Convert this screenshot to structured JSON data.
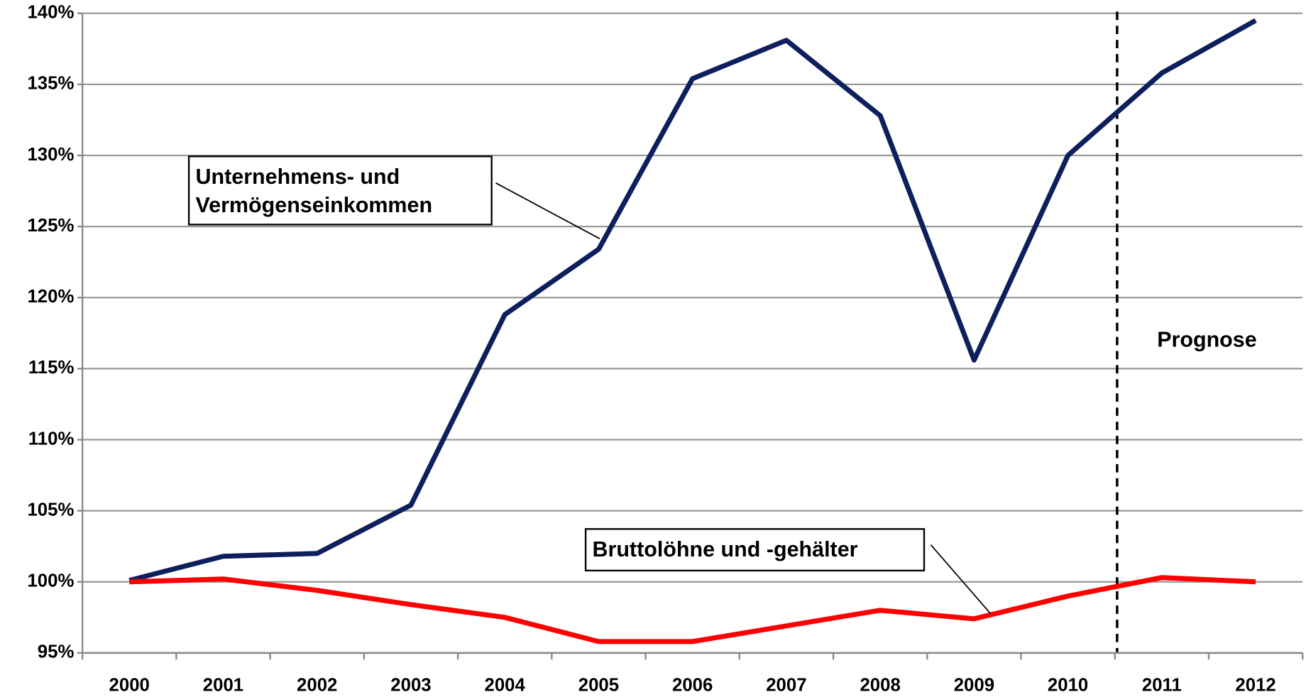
{
  "chart_data": {
    "type": "line",
    "categories": [
      "2000",
      "2001",
      "2002",
      "2003",
      "2004",
      "2005",
      "2006",
      "2007",
      "2008",
      "2009",
      "2010",
      "2011",
      "2012"
    ],
    "series": [
      {
        "name": "Unternehmens- und Vermögenseinkommen",
        "color": "#0d1f5c",
        "values": [
          100.1,
          101.8,
          102.0,
          105.4,
          118.8,
          123.4,
          135.4,
          138.1,
          132.8,
          115.6,
          130.0,
          135.8,
          139.5
        ]
      },
      {
        "name": "Bruttolöhne und -gehälter",
        "color": "#ff0000",
        "values": [
          100.0,
          100.2,
          99.4,
          98.4,
          97.5,
          95.8,
          95.8,
          96.9,
          98.0,
          97.4,
          99.0,
          100.3,
          100.0
        ]
      }
    ],
    "annotations": [
      "Prognose"
    ],
    "ylim": [
      95,
      140
    ],
    "yticks": [
      {
        "value": 95,
        "label": "95%"
      },
      {
        "value": 100,
        "label": "100%"
      },
      {
        "value": 105,
        "label": "105%"
      },
      {
        "value": 110,
        "label": "110%"
      },
      {
        "value": 115,
        "label": "115%"
      },
      {
        "value": 120,
        "label": "120%"
      },
      {
        "value": 125,
        "label": "125%"
      },
      {
        "value": 130,
        "label": "130%"
      },
      {
        "value": 135,
        "label": "135%"
      },
      {
        "value": 140,
        "label": "140%"
      }
    ],
    "grid": true
  }
}
